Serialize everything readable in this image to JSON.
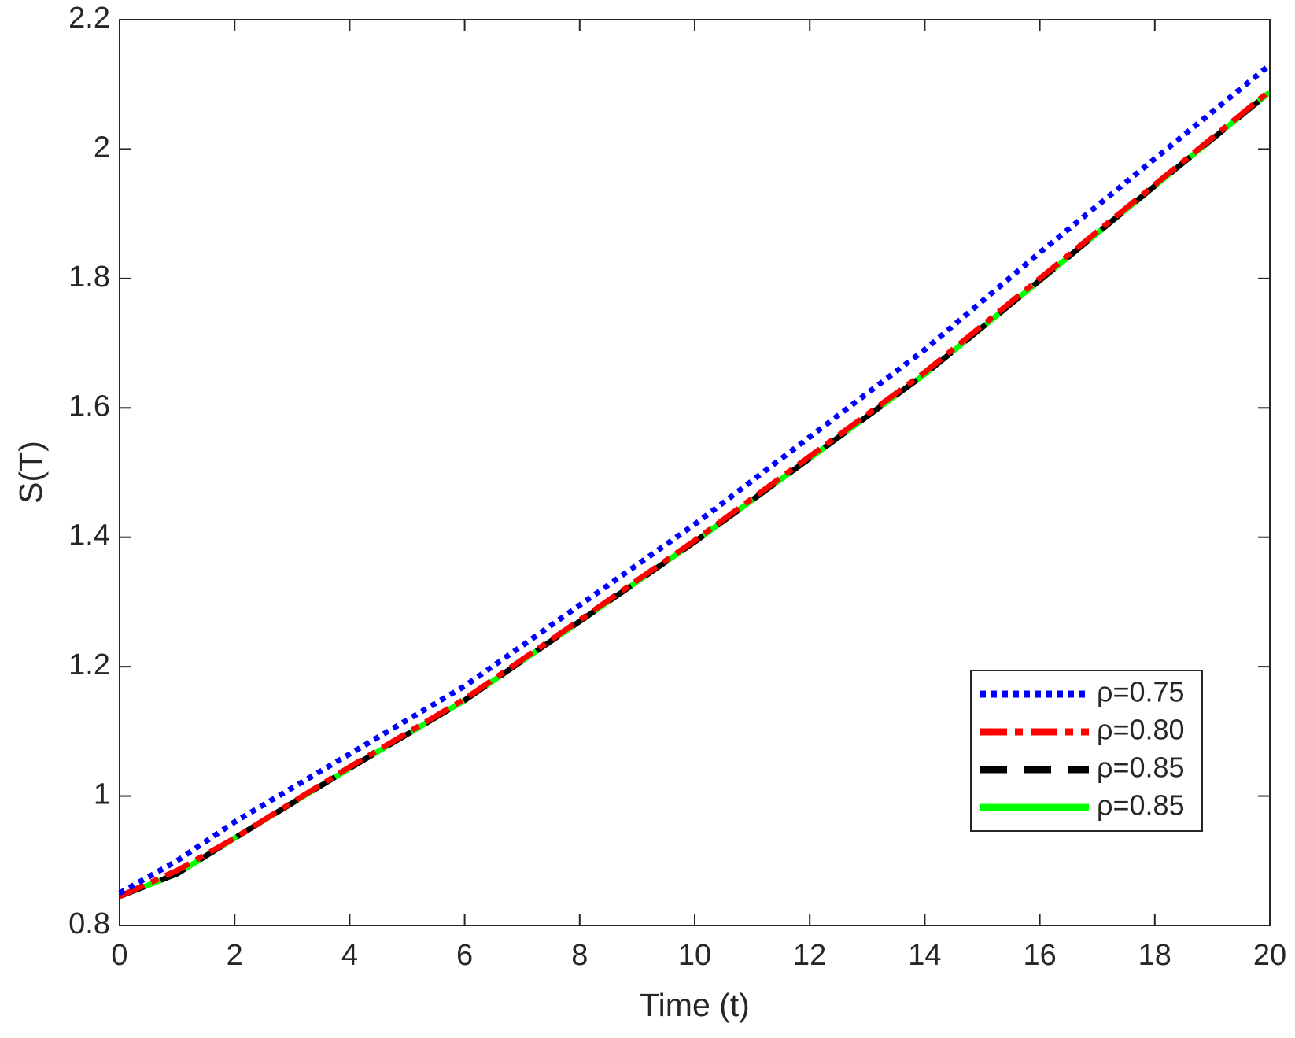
{
  "chart_data": {
    "type": "line",
    "xlabel": "Time (t)",
    "ylabel": "S(T)",
    "x": [
      0,
      1,
      2,
      4,
      6,
      8,
      10,
      12,
      14,
      16,
      18,
      20
    ],
    "series": [
      {
        "name": "ρ=0.75",
        "color": "#0000ff",
        "style": "dotted",
        "values": [
          0.85,
          0.9,
          0.96,
          1.065,
          1.17,
          1.295,
          1.42,
          1.555,
          1.69,
          1.84,
          1.985,
          2.13
        ]
      },
      {
        "name": "ρ=0.80",
        "color": "#ff0000",
        "style": "dashdot",
        "values": [
          0.845,
          0.885,
          0.935,
          1.045,
          1.15,
          1.272,
          1.395,
          1.525,
          1.655,
          1.8,
          1.945,
          2.09
        ]
      },
      {
        "name": "ρ=0.85",
        "color": "#000000",
        "style": "dashed",
        "values": [
          0.845,
          0.88,
          0.935,
          1.043,
          1.148,
          1.27,
          1.393,
          1.522,
          1.652,
          1.797,
          1.943,
          2.088
        ]
      },
      {
        "name": "ρ=0.85",
        "color": "#00ff00",
        "style": "solid",
        "values": [
          0.845,
          0.88,
          0.935,
          1.043,
          1.148,
          1.27,
          1.393,
          1.522,
          1.652,
          1.797,
          1.943,
          2.088
        ]
      }
    ],
    "xlim": [
      0,
      20
    ],
    "xticks": [
      0,
      2,
      4,
      6,
      8,
      10,
      12,
      14,
      16,
      18,
      20
    ],
    "ylim": [
      0.8,
      2.2
    ],
    "yticks": [
      0.8,
      1,
      1.2,
      1.4,
      1.6,
      1.8,
      2,
      2.2
    ],
    "legend": "southeast",
    "grid": false
  }
}
